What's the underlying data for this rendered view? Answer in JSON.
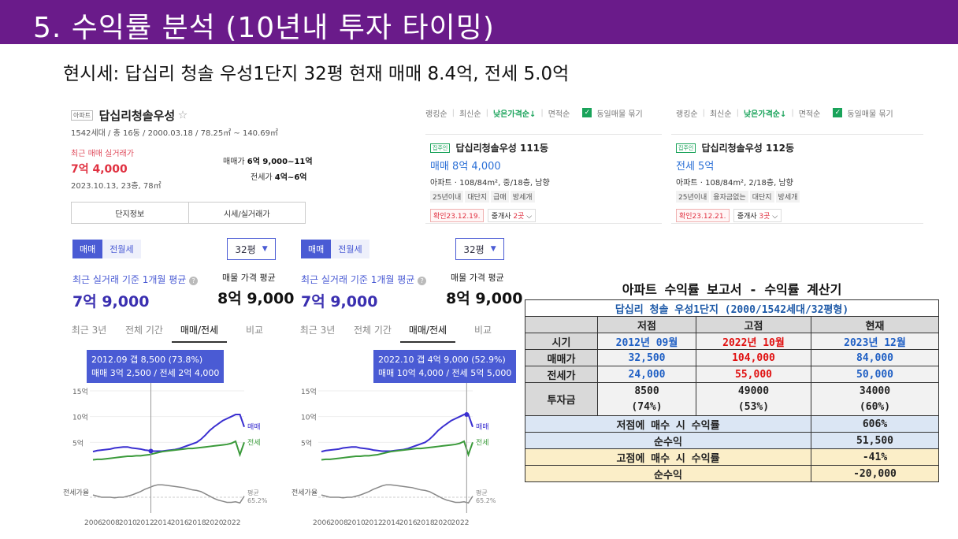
{
  "title": "5. 수익률 분석 (10년내 투자 타이밍)",
  "subtitle": "현시세: 답십리 청솔 우성1단지  32평 현재 매매  8.4억, 전세 5.0억",
  "summary": {
    "badge": "아파트",
    "name": "답십리청솔우성",
    "star": "☆",
    "meta": "1542세대 / 총 16동 / 2000.03.18 / 78.25㎡ ~ 140.69㎡",
    "recent_label": "최근 매매 실거래가",
    "recent_price": "7억 4,000",
    "recent_date": "2023.10.13, 23층, 78㎡",
    "sale_label": "매매가",
    "sale_range": "6억 9,000~11억",
    "jeonse_label": "전세가",
    "jeonse_range": "4억~6억",
    "tab1": "단지정보",
    "tab2": "시세/실거래가"
  },
  "listings": [
    {
      "sort": [
        "랭킹순",
        "최신순",
        "낮은가격순↓",
        "면적순"
      ],
      "check_icon": "✓",
      "check_label": "동일매물 묶기",
      "badge": "집주인",
      "name": "답십리청솔우성 111동",
      "price": "매매 8억 4,000",
      "desc": "아파트 · 108/84m², 중/18층, 남향",
      "tags": [
        "25년이내",
        "대단지",
        "급매",
        "방세개"
      ],
      "confirm": "확인23.12.19.",
      "agent_prefix": "중개사 ",
      "agent_count": "2곳",
      "agent_chevron": "⌵"
    },
    {
      "sort": [
        "랭킹순",
        "최신순",
        "낮은가격순↓",
        "면적순"
      ],
      "check_icon": "✓",
      "check_label": "동일매물 묶기",
      "badge": "집주인",
      "name": "답십리청솔우성 112동",
      "price": "전세 5억",
      "desc": "아파트 · 108/84m², 2/18층, 남향",
      "tags": [
        "25년이내",
        "융자금없는",
        "대단지",
        "방세개"
      ],
      "confirm": "확인23.12.21.",
      "agent_prefix": "중개사 ",
      "agent_count": "3곳",
      "agent_chevron": "⌵"
    }
  ],
  "panels": [
    {
      "seg_on": "매매",
      "seg_off": "전월세",
      "pyeong": "32평",
      "pyeong_icon": "▼",
      "avg_label": "최근 실거래 기준 1개월 평균",
      "avg_icon": "?",
      "avg_value": "7억 9,000",
      "list_label": "매물 가격 평균",
      "list_value": "8억 9,000",
      "tabs": [
        "최근 3년",
        "전체 기간",
        "매매/전세",
        "비교"
      ],
      "tooltip_line1": "2012.09  갭 8,500 (73.8%)",
      "tooltip_line2": "매매 3억 2,500 / 전세 2억 4,000"
    },
    {
      "seg_on": "매매",
      "seg_off": "전월세",
      "pyeong": "32평",
      "pyeong_icon": "▼",
      "avg_label": "최근 실거래 기준 1개월 평균",
      "avg_icon": "?",
      "avg_value": "7억 9,000",
      "list_label": "매물 가격 평균",
      "list_value": "8억 9,000",
      "tabs": [
        "최근 3년",
        "전체 기간",
        "매매/전세",
        "비교"
      ],
      "tooltip_line1": "2022.10  갭 4억 9,000 (52.9%)",
      "tooltip_line2": "매매 10억 4,000 / 전세 5억 5,000"
    }
  ],
  "chart_data": [
    {
      "type": "line",
      "x": [
        2006,
        2008,
        2010,
        2012,
        2014,
        2016,
        2018,
        2020,
        2022
      ],
      "xticks": [
        "2006",
        "2008",
        "2010",
        "2012",
        "2014",
        "2016",
        "2018",
        "2020",
        "2022"
      ],
      "yticks": [
        "15억",
        "10억",
        "5억"
      ],
      "ylim": [
        0,
        15
      ],
      "series": [
        {
          "name": "매매",
          "color": "#3a2fd0",
          "values": [
            3.3,
            3.8,
            4.2,
            3.3,
            3.4,
            4.3,
            6.0,
            8.6,
            10.4
          ]
        },
        {
          "name": "전세",
          "color": "#3a9a3a",
          "values": null
        },
        {
          "name": "전세가율",
          "color": "#888888",
          "values": null
        }
      ],
      "highlight_year": 2012.7,
      "ratio_label": "전세가율",
      "avg_label": "평균",
      "avg_value": "65.2%"
    },
    {
      "type": "line",
      "x": [
        2006,
        2008,
        2010,
        2012,
        2014,
        2016,
        2018,
        2020,
        2022
      ],
      "xticks": [
        "2006",
        "2008",
        "2010",
        "2012",
        "2014",
        "2016",
        "2018",
        "2020",
        "2022"
      ],
      "yticks": [
        "15억",
        "10억",
        "5억"
      ],
      "ylim": [
        0,
        15
      ],
      "series": [
        {
          "name": "매매",
          "color": "#3a2fd0",
          "values": [
            3.3,
            3.8,
            4.2,
            3.3,
            3.4,
            4.3,
            6.0,
            8.6,
            10.4
          ]
        },
        {
          "name": "전세",
          "color": "#3a9a3a",
          "values": null
        },
        {
          "name": "전세가율",
          "color": "#888888",
          "values": null
        }
      ],
      "highlight_year": 2022.8,
      "ratio_label": "전세가율",
      "avg_label": "평균",
      "avg_value": "65.2%"
    }
  ],
  "chart_series": {
    "sale": [
      3.2,
      3.4,
      3.5,
      3.6,
      3.7,
      3.9,
      4.0,
      4.1,
      4.1,
      3.9,
      3.8,
      3.7,
      3.5,
      3.4,
      3.3,
      3.3,
      3.3,
      3.4,
      3.5,
      3.6,
      3.8,
      4.1,
      4.4,
      4.7,
      5.0,
      5.6,
      6.4,
      7.3,
      8.0,
      8.6,
      9.2,
      9.6,
      10.0,
      10.4,
      10.4,
      8.0
    ],
    "jeonse": [
      1.6,
      1.7,
      1.7,
      1.8,
      1.9,
      2.0,
      2.1,
      2.2,
      2.3,
      2.3,
      2.4,
      2.4,
      2.5,
      2.6,
      2.8,
      3.0,
      3.2,
      3.3,
      3.4,
      3.5,
      3.6,
      3.7,
      3.8,
      3.8,
      3.9,
      4.0,
      4.1,
      4.2,
      4.3,
      4.4,
      4.5,
      4.6,
      4.8,
      5.2,
      2.6,
      5.0
    ],
    "ratio": [
      62,
      60,
      58,
      58,
      58,
      57,
      58,
      58,
      60,
      62,
      65,
      68,
      72,
      75,
      78,
      80,
      80,
      79,
      78,
      77,
      76,
      75,
      73,
      71,
      70,
      68,
      64,
      60,
      56,
      53,
      51,
      49,
      49,
      50,
      48,
      60
    ]
  },
  "report": {
    "title": "아파트 수익률 보고서 - 수익률 계산기",
    "apt": "답십리 청솔 우성1단지 (2000/1542세대/32평형)",
    "headers": [
      "",
      "저점",
      "고점",
      "현재"
    ],
    "rows": {
      "time": [
        "시기",
        "2012년 09월",
        "2022년 10월",
        "2023년 12월"
      ],
      "sale": [
        "매매가",
        "32,500",
        "104,000",
        "84,000"
      ],
      "jeonse": [
        "전세가",
        "24,000",
        "55,000",
        "50,000"
      ],
      "invest_label": "투자금",
      "invest_values": [
        "8500",
        "49000",
        "34000"
      ],
      "invest_pct": [
        "(74%)",
        "(53%)",
        "(60%)"
      ]
    },
    "low_label": "저점에 매수 시 수익률",
    "low_rate": "606%",
    "low_net_label": "순수익",
    "low_net": "51,500",
    "high_label": "고점에 매수 시 수익률",
    "high_rate": "-41%",
    "high_net_label": "순수익",
    "high_net": "-20,000"
  }
}
